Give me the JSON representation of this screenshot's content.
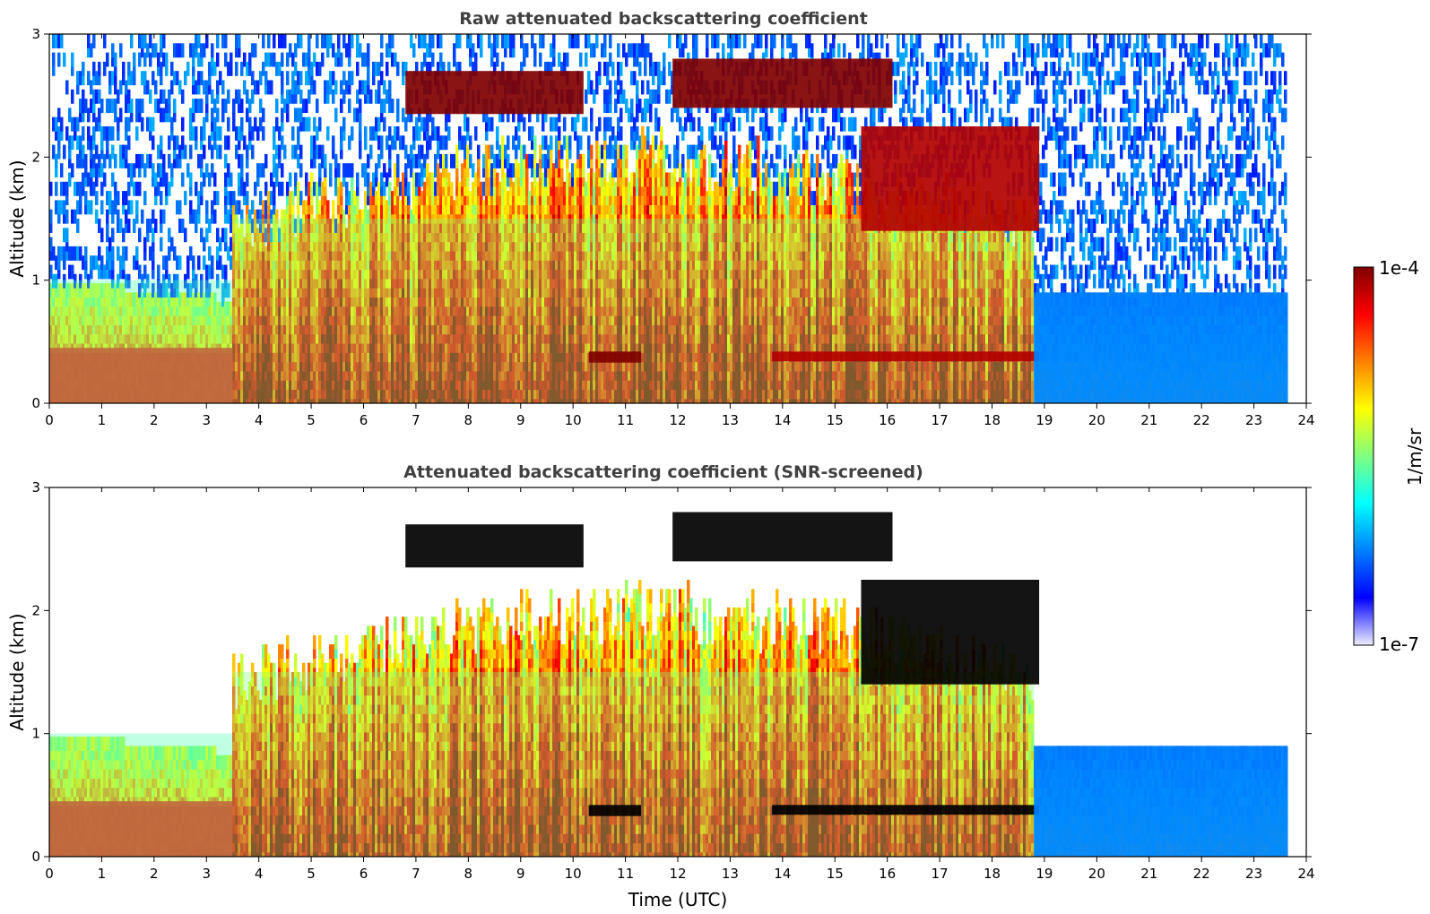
{
  "chart_data": [
    {
      "type": "heatmap",
      "title": "Raw attenuated backscattering coefficient",
      "xlabel": "",
      "ylabel": "Altitude (km)",
      "xlim": [
        0,
        24
      ],
      "ylim": [
        0,
        3
      ],
      "x_ticks": [
        "0",
        "1",
        "2",
        "3",
        "4",
        "5",
        "6",
        "7",
        "8",
        "9",
        "10",
        "11",
        "12",
        "13",
        "14",
        "15",
        "16",
        "17",
        "18",
        "19",
        "20",
        "21",
        "22",
        "23",
        "24"
      ],
      "y_ticks": [
        "0",
        "1",
        "2",
        "3"
      ],
      "data_end_time": 23.65,
      "screened": false,
      "layers": [
        {
          "feature": "surface aerosol layer",
          "t_start": 0,
          "t_end": 3.5,
          "alt_top": 0.45,
          "level": 0.85
        },
        {
          "feature": "boundary layer",
          "t_start": 0,
          "t_end": 3.5,
          "alt_top": 1.0,
          "level": 0.45
        },
        {
          "feature": "convective mixed layer",
          "t_start": 3.5,
          "t_end": 18.8,
          "alt_top": 1.5,
          "level": 0.5
        },
        {
          "feature": "cloud layer",
          "t_start": 6.8,
          "t_end": 10.2,
          "alt_bottom": 2.35,
          "alt_top": 2.7,
          "level": 1.0
        },
        {
          "feature": "cloud layer",
          "t_start": 11.9,
          "t_end": 16.1,
          "alt_bottom": 2.4,
          "alt_top": 2.8,
          "level": 1.0
        },
        {
          "feature": "elevated layer",
          "t_start": 15.5,
          "t_end": 18.9,
          "alt_bottom": 1.4,
          "alt_top": 2.25,
          "level": 0.95
        },
        {
          "feature": "low cloud",
          "t_start": 10.3,
          "t_end": 11.3,
          "alt_bottom": 0.33,
          "alt_top": 0.42,
          "level": 1.0
        },
        {
          "feature": "low cloud",
          "t_start": 13.8,
          "t_end": 18.9,
          "alt_bottom": 0.34,
          "alt_top": 0.42,
          "level": 0.95
        },
        {
          "feature": "residual layer",
          "t_start": 18.8,
          "t_end": 23.65,
          "alt_top": 0.9,
          "level": 0.25
        }
      ]
    },
    {
      "type": "heatmap",
      "title": "Attenuated backscattering coefficient (SNR-screened)",
      "xlabel": "Time (UTC)",
      "ylabel": "Altitude (km)",
      "xlim": [
        0,
        24
      ],
      "ylim": [
        0,
        3
      ],
      "x_ticks": [
        "0",
        "1",
        "2",
        "3",
        "4",
        "5",
        "6",
        "7",
        "8",
        "9",
        "10",
        "11",
        "12",
        "13",
        "14",
        "15",
        "16",
        "17",
        "18",
        "19",
        "20",
        "21",
        "22",
        "23",
        "24"
      ],
      "y_ticks": [
        "0",
        "1",
        "2",
        "3"
      ],
      "data_end_time": 23.65,
      "screened": true,
      "screened_fill": "#ffffff",
      "saturated_marker": "#000000"
    }
  ],
  "colorbar": {
    "label": "1/m/sr",
    "max_label": "1e-4",
    "min_label": "1e-7",
    "colormap": "jet",
    "colors": [
      "#eeeeff",
      "#0000ff",
      "#0080ff",
      "#00ffff",
      "#80ff80",
      "#ffff00",
      "#ff8000",
      "#ff0000",
      "#800000"
    ]
  }
}
